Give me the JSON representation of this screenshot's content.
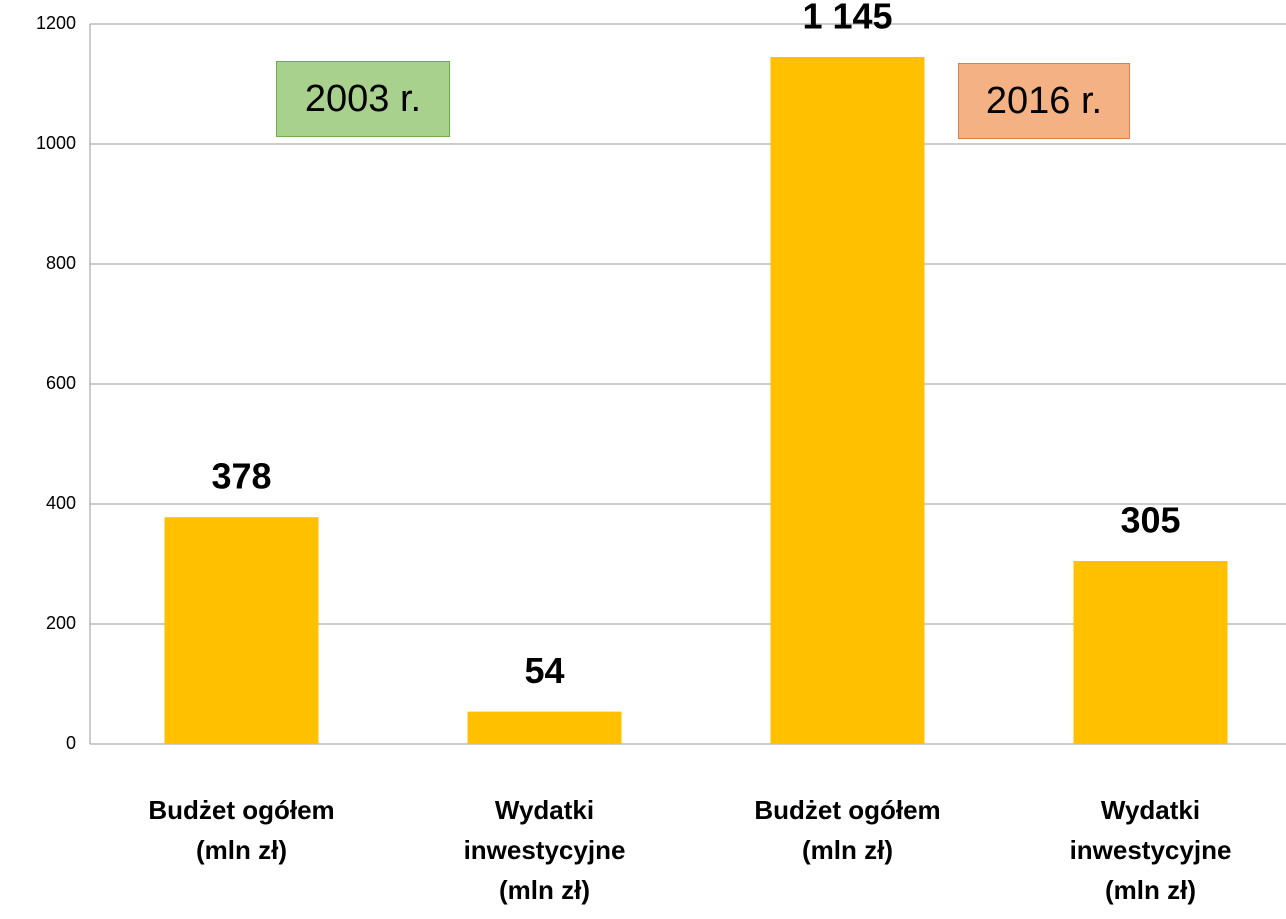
{
  "chart_data": {
    "type": "bar",
    "categories": [
      "Budżet ogółem (mln zł)",
      "Wydatki inwestycyjne (mln zł)",
      "Budżet ogółem (mln zł)",
      "Wydatki inwestycyjne (mln zł)"
    ],
    "values": [
      378,
      54,
      1145,
      305
    ],
    "value_labels": [
      "378",
      "54",
      "1 145",
      "305"
    ],
    "color": "#ffc000",
    "ylim": [
      0,
      1200
    ],
    "yticks": [
      0,
      200,
      400,
      600,
      800,
      1000,
      1200
    ],
    "grid": true,
    "annotations": [
      {
        "text": "2003 r.",
        "color": "#a9d18e"
      },
      {
        "text": "2016 r.",
        "color": "#f4b183"
      }
    ]
  }
}
